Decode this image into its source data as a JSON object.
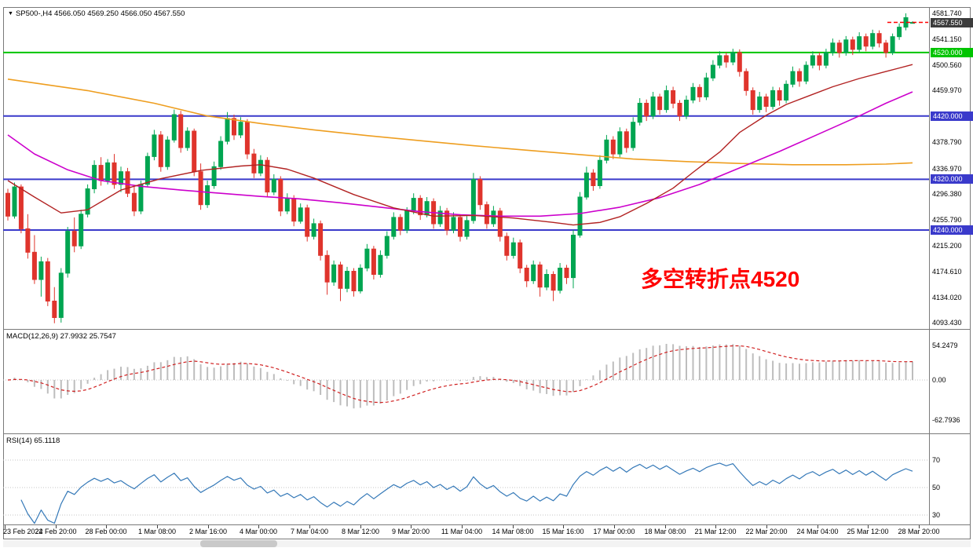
{
  "window": {
    "title": "SP500-,H4 4566.050 4569.250 4566.050 4567.550",
    "symbol": "SP500-",
    "timeframe": "H4",
    "collapse_icon": "chart-collapse-arrow"
  },
  "annotation": {
    "text": "多空转折点4520"
  },
  "colors": {
    "background": "#FFFFFF",
    "candle_up": "#00A551",
    "candle_down": "#DF342C",
    "hline_green": "#00C400",
    "hline_blue": "#3A3ACB",
    "macd_hist": "#BDBDBD",
    "macd_signal": "#D02020",
    "rsi_line": "#3579B8",
    "badge_current_bg": "#3C3C3C",
    "axis_line": "#7A7A7A",
    "grid_dotted": "#C4C4C4",
    "annotation_red": "#FF0000"
  },
  "price_axis": {
    "ticks": [
      {
        "label": "4581.740",
        "price": 4581.74
      },
      {
        "label": "4541.150",
        "price": 4541.15
      },
      {
        "label": "4500.560",
        "price": 4500.56
      },
      {
        "label": "4459.970",
        "price": 4459.97
      },
      {
        "label": "4378.790",
        "price": 4378.79
      },
      {
        "label": "4336.970",
        "price": 4336.97
      },
      {
        "label": "4296.380",
        "price": 4296.38
      },
      {
        "label": "4255.790",
        "price": 4255.79
      },
      {
        "label": "4215.200",
        "price": 4215.2
      },
      {
        "label": "4174.610",
        "price": 4174.61
      },
      {
        "label": "4134.020",
        "price": 4134.02
      },
      {
        "label": "4093.430",
        "price": 4093.43
      }
    ],
    "current": {
      "label": "4567.550",
      "price": 4567.55
    }
  },
  "indicators": {
    "macd": {
      "text": "MACD(12,26,9) 27.9932 25.7547",
      "current_main": 27.9932,
      "current_signal": 25.7547,
      "axis": [
        {
          "label": "54.2479",
          "value": 54.2479
        },
        {
          "label": "0.00",
          "value": 0
        },
        {
          "label": "-62.7936",
          "value": -62.7936
        }
      ]
    },
    "rsi": {
      "text": "RSI(14) 65.1118",
      "current": 65.1118,
      "levels": [
        {
          "label": "70",
          "value": 70
        },
        {
          "label": "50",
          "value": 50
        },
        {
          "label": "30",
          "value": 30
        }
      ]
    }
  },
  "time_axis": [
    "23 Feb 2022",
    "24 Feb 20:00",
    "28 Feb 00:00",
    "1 Mar 08:00",
    "2 Mar 16:00",
    "4 Mar 00:00",
    "7 Mar 04:00",
    "8 Mar 12:00",
    "9 Mar 20:00",
    "11 Mar 04:00",
    "14 Mar 08:00",
    "15 Mar 16:00",
    "17 Mar 00:00",
    "18 Mar 08:00",
    "21 Mar 12:00",
    "22 Mar 20:00",
    "24 Mar 04:00",
    "25 Mar 12:00",
    "28 Mar 20:00"
  ],
  "chart_data": {
    "type": "candlestick",
    "title": "SP500- H4 with MACD(12,26,9) and RSI(14)",
    "price_min": 4084.0,
    "price_max": 4591.7,
    "last_open": 4566.05,
    "last_high": 4569.25,
    "last_low": 4566.05,
    "last_close": 4567.55,
    "hlines": [
      {
        "price": 4520,
        "label": "4520.000",
        "color": "#00C400"
      },
      {
        "price": 4420,
        "label": "4420.000",
        "color": "#3A3ACB"
      },
      {
        "price": 4320,
        "label": "4320.000",
        "color": "#3A3ACB"
      },
      {
        "price": 4240,
        "label": "4240.000",
        "color": "#3A3ACB"
      }
    ],
    "candles": [
      [
        4298,
        4305,
        4255,
        4262
      ],
      [
        4262,
        4315,
        4258,
        4308
      ],
      [
        4308,
        4312,
        4235,
        4242
      ],
      [
        4242,
        4265,
        4195,
        4205
      ],
      [
        4205,
        4232,
        4155,
        4162
      ],
      [
        4162,
        4198,
        4135,
        4190
      ],
      [
        4190,
        4196,
        4120,
        4128
      ],
      [
        4128,
        4150,
        4093,
        4102
      ],
      [
        4102,
        4180,
        4094,
        4172
      ],
      [
        4172,
        4245,
        4165,
        4238
      ],
      [
        4238,
        4260,
        4205,
        4215
      ],
      [
        4215,
        4272,
        4210,
        4265
      ],
      [
        4265,
        4312,
        4260,
        4305
      ],
      [
        4305,
        4350,
        4298,
        4342
      ],
      [
        4342,
        4355,
        4310,
        4318
      ],
      [
        4318,
        4352,
        4312,
        4346
      ],
      [
        4346,
        4360,
        4305,
        4312
      ],
      [
        4312,
        4340,
        4300,
        4332
      ],
      [
        4332,
        4338,
        4292,
        4298
      ],
      [
        4298,
        4310,
        4262,
        4270
      ],
      [
        4270,
        4318,
        4265,
        4312
      ],
      [
        4312,
        4362,
        4308,
        4356
      ],
      [
        4356,
        4398,
        4350,
        4390
      ],
      [
        4390,
        4396,
        4332,
        4340
      ],
      [
        4340,
        4388,
        4335,
        4382
      ],
      [
        4382,
        4430,
        4378,
        4422
      ],
      [
        4422,
        4428,
        4362,
        4370
      ],
      [
        4370,
        4402,
        4365,
        4396
      ],
      [
        4396,
        4400,
        4325,
        4332
      ],
      [
        4332,
        4345,
        4272,
        4280
      ],
      [
        4280,
        4318,
        4275,
        4310
      ],
      [
        4310,
        4348,
        4305,
        4340
      ],
      [
        4340,
        4388,
        4335,
        4380
      ],
      [
        4380,
        4426,
        4375,
        4416
      ],
      [
        4416,
        4422,
        4382,
        4390
      ],
      [
        4390,
        4418,
        4385,
        4410
      ],
      [
        4410,
        4415,
        4352,
        4360
      ],
      [
        4360,
        4368,
        4322,
        4330
      ],
      [
        4330,
        4358,
        4325,
        4350
      ],
      [
        4350,
        4355,
        4292,
        4300
      ],
      [
        4300,
        4328,
        4295,
        4320
      ],
      [
        4320,
        4325,
        4262,
        4270
      ],
      [
        4270,
        4298,
        4265,
        4290
      ],
      [
        4290,
        4295,
        4246,
        4254
      ],
      [
        4254,
        4282,
        4250,
        4275
      ],
      [
        4275,
        4280,
        4222,
        4230
      ],
      [
        4230,
        4258,
        4225,
        4250
      ],
      [
        4250,
        4255,
        4192,
        4200
      ],
      [
        4200,
        4208,
        4138,
        4158
      ],
      [
        4158,
        4192,
        4152,
        4185
      ],
      [
        4185,
        4190,
        4128,
        4148
      ],
      [
        4148,
        4182,
        4142,
        4175
      ],
      [
        4175,
        4180,
        4135,
        4144
      ],
      [
        4144,
        4186,
        4140,
        4180
      ],
      [
        4180,
        4218,
        4175,
        4210
      ],
      [
        4210,
        4215,
        4162,
        4170
      ],
      [
        4170,
        4208,
        4165,
        4200
      ],
      [
        4200,
        4238,
        4195,
        4230
      ],
      [
        4230,
        4268,
        4225,
        4260
      ],
      [
        4260,
        4265,
        4232,
        4240
      ],
      [
        4240,
        4276,
        4235,
        4270
      ],
      [
        4270,
        4298,
        4265,
        4290
      ],
      [
        4290,
        4295,
        4256,
        4264
      ],
      [
        4264,
        4292,
        4260,
        4285
      ],
      [
        4285,
        4290,
        4242,
        4250
      ],
      [
        4250,
        4278,
        4245,
        4270
      ],
      [
        4270,
        4275,
        4232,
        4240
      ],
      [
        4240,
        4268,
        4235,
        4260
      ],
      [
        4260,
        4265,
        4222,
        4230
      ],
      [
        4230,
        4262,
        4225,
        4255
      ],
      [
        4255,
        4330,
        4250,
        4320
      ],
      [
        4320,
        4325,
        4272,
        4280
      ],
      [
        4280,
        4285,
        4242,
        4250
      ],
      [
        4250,
        4278,
        4245,
        4270
      ],
      [
        4270,
        4275,
        4222,
        4230
      ],
      [
        4230,
        4236,
        4192,
        4200
      ],
      [
        4200,
        4228,
        4195,
        4220
      ],
      [
        4220,
        4225,
        4172,
        4180
      ],
      [
        4180,
        4185,
        4150,
        4160
      ],
      [
        4160,
        4192,
        4155,
        4185
      ],
      [
        4185,
        4190,
        4135,
        4150
      ],
      [
        4150,
        4178,
        4145,
        4170
      ],
      [
        4170,
        4175,
        4128,
        4145
      ],
      [
        4145,
        4188,
        4140,
        4180
      ],
      [
        4180,
        4185,
        4155,
        4165
      ],
      [
        4165,
        4240,
        4148,
        4232
      ],
      [
        4232,
        4300,
        4228,
        4292
      ],
      [
        4292,
        4340,
        4288,
        4330
      ],
      [
        4330,
        4336,
        4302,
        4310
      ],
      [
        4310,
        4358,
        4305,
        4350
      ],
      [
        4350,
        4390,
        4345,
        4382
      ],
      [
        4382,
        4388,
        4352,
        4360
      ],
      [
        4360,
        4402,
        4355,
        4395
      ],
      [
        4395,
        4400,
        4362,
        4370
      ],
      [
        4370,
        4418,
        4365,
        4410
      ],
      [
        4410,
        4448,
        4405,
        4440
      ],
      [
        4440,
        4446,
        4412,
        4420
      ],
      [
        4420,
        4458,
        4415,
        4450
      ],
      [
        4450,
        4455,
        4422,
        4430
      ],
      [
        4430,
        4468,
        4425,
        4460
      ],
      [
        4460,
        4466,
        4432,
        4440
      ],
      [
        4440,
        4445,
        4412,
        4420
      ],
      [
        4420,
        4452,
        4415,
        4445
      ],
      [
        4445,
        4472,
        4440,
        4465
      ],
      [
        4465,
        4470,
        4442,
        4450
      ],
      [
        4450,
        4488,
        4445,
        4480
      ],
      [
        4480,
        4508,
        4475,
        4500
      ],
      [
        4500,
        4522,
        4495,
        4515
      ],
      [
        4515,
        4520,
        4496,
        4505
      ],
      [
        4505,
        4526,
        4500,
        4520
      ],
      [
        4520,
        4525,
        4482,
        4490
      ],
      [
        4490,
        4495,
        4452,
        4460
      ],
      [
        4460,
        4465,
        4422,
        4430
      ],
      [
        4430,
        4458,
        4425,
        4450
      ],
      [
        4450,
        4455,
        4426,
        4435
      ],
      [
        4435,
        4466,
        4430,
        4460
      ],
      [
        4460,
        4465,
        4436,
        4445
      ],
      [
        4445,
        4476,
        4440,
        4470
      ],
      [
        4470,
        4498,
        4465,
        4490
      ],
      [
        4490,
        4495,
        4466,
        4475
      ],
      [
        4475,
        4506,
        4470,
        4500
      ],
      [
        4500,
        4522,
        4495,
        4515
      ],
      [
        4515,
        4520,
        4492,
        4500
      ],
      [
        4500,
        4526,
        4495,
        4520
      ],
      [
        4520,
        4542,
        4515,
        4535
      ],
      [
        4535,
        4540,
        4512,
        4520
      ],
      [
        4520,
        4546,
        4515,
        4540
      ],
      [
        4540,
        4545,
        4516,
        4525
      ],
      [
        4525,
        4552,
        4520,
        4545
      ],
      [
        4545,
        4550,
        4522,
        4530
      ],
      [
        4530,
        4556,
        4525,
        4550
      ],
      [
        4550,
        4555,
        4528,
        4535
      ],
      [
        4535,
        4540,
        4512,
        4520
      ],
      [
        4520,
        4550,
        4516,
        4545
      ],
      [
        4545,
        4566,
        4540,
        4560
      ],
      [
        4560,
        4581.74,
        4555,
        4575
      ],
      [
        4566.05,
        4569.25,
        4566.05,
        4567.55
      ]
    ],
    "moving_averages": [
      {
        "name": "ma-slow-orange",
        "color": "#EE9E20",
        "width": 1.6,
        "points": [
          [
            0,
            4478
          ],
          [
            12,
            4460
          ],
          [
            22,
            4440
          ],
          [
            30,
            4420
          ],
          [
            38,
            4408
          ],
          [
            46,
            4398
          ],
          [
            54,
            4389
          ],
          [
            62,
            4381
          ],
          [
            70,
            4373
          ],
          [
            78,
            4366
          ],
          [
            86,
            4359
          ],
          [
            94,
            4352
          ],
          [
            102,
            4348
          ],
          [
            110,
            4345
          ],
          [
            118,
            4343
          ],
          [
            126,
            4343
          ],
          [
            132,
            4344
          ],
          [
            136,
            4346
          ]
        ]
      },
      {
        "name": "ma-mid-magenta",
        "color": "#CC00CC",
        "width": 1.6,
        "points": [
          [
            0,
            4390
          ],
          [
            4,
            4360
          ],
          [
            9,
            4335
          ],
          [
            14,
            4318
          ],
          [
            20,
            4309
          ],
          [
            26,
            4303
          ],
          [
            32,
            4298
          ],
          [
            38,
            4293
          ],
          [
            44,
            4289
          ],
          [
            50,
            4283
          ],
          [
            56,
            4276
          ],
          [
            62,
            4269
          ],
          [
            68,
            4264
          ],
          [
            74,
            4262
          ],
          [
            80,
            4262
          ],
          [
            86,
            4266
          ],
          [
            92,
            4276
          ],
          [
            98,
            4291
          ],
          [
            104,
            4312
          ],
          [
            110,
            4338
          ],
          [
            116,
            4364
          ],
          [
            122,
            4392
          ],
          [
            128,
            4420
          ],
          [
            132,
            4440
          ],
          [
            136,
            4458
          ]
        ]
      },
      {
        "name": "ma-fast-red",
        "color": "#B22222",
        "width": 1.4,
        "points": [
          [
            0,
            4318
          ],
          [
            4,
            4292
          ],
          [
            8,
            4267
          ],
          [
            12,
            4272
          ],
          [
            17,
            4303
          ],
          [
            23,
            4321
          ],
          [
            29,
            4334
          ],
          [
            35,
            4341
          ],
          [
            38,
            4343
          ],
          [
            42,
            4336
          ],
          [
            46,
            4322
          ],
          [
            52,
            4296
          ],
          [
            58,
            4275
          ],
          [
            64,
            4262
          ],
          [
            70,
            4263
          ],
          [
            76,
            4259
          ],
          [
            82,
            4252
          ],
          [
            85,
            4248
          ],
          [
            89,
            4252
          ],
          [
            92,
            4261
          ],
          [
            96,
            4282
          ],
          [
            100,
            4306
          ],
          [
            103,
            4331
          ],
          [
            107,
            4363
          ],
          [
            110,
            4394
          ],
          [
            114,
            4421
          ],
          [
            117,
            4438
          ],
          [
            121,
            4454
          ],
          [
            124,
            4466
          ],
          [
            128,
            4479
          ],
          [
            132,
            4490
          ],
          [
            136,
            4501
          ]
        ]
      }
    ],
    "macd": {
      "fast": 12,
      "slow": 26,
      "signal": 9,
      "current_main": 27.9932,
      "current_signal": 25.7547,
      "axis_top": 54.2479,
      "axis_bottom": -62.7936
    },
    "rsi": {
      "period": 14,
      "current": 65.1118,
      "levels": [
        70,
        50,
        30
      ]
    }
  },
  "scrollbar": {
    "thumb_position": "left-third"
  }
}
